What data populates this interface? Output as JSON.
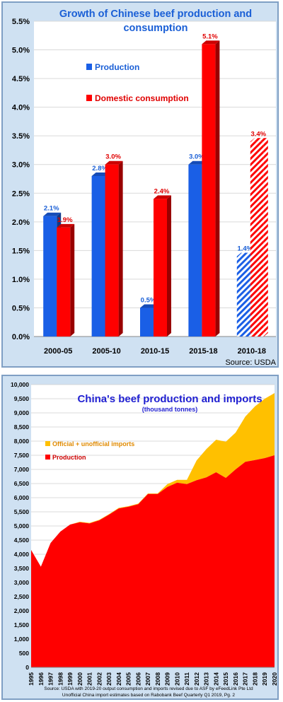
{
  "chart_data": [
    {
      "type": "bar",
      "title": "Growth of Chinese beef production and consumption",
      "title_lines": [
        "Growth of Chinese beef production and",
        "consumption"
      ],
      "categories": [
        "2000-05",
        "2005-10",
        "2010-15",
        "2015-18",
        "2010-18"
      ],
      "series": [
        {
          "name": "Production",
          "values": [
            2.1,
            2.8,
            0.5,
            3.0,
            1.4
          ],
          "labels": [
            "2.1%",
            "2.8%",
            "0.5%",
            "3.0%",
            "1.4%"
          ],
          "color": "#1a5fe6"
        },
        {
          "name": "Domestic consumption",
          "values": [
            1.9,
            3.0,
            2.4,
            5.1,
            3.4
          ],
          "labels": [
            "1.9%",
            "3.0%",
            "2.4%",
            "5.1%",
            "3.4%"
          ],
          "color": "#ff0000"
        }
      ],
      "hatched_categories": [
        "2010-18"
      ],
      "ylim": [
        0,
        5.5
      ],
      "yticks": [
        "0.0%",
        "0.5%",
        "1.0%",
        "1.5%",
        "2.0%",
        "2.5%",
        "3.0%",
        "3.5%",
        "4.0%",
        "4.5%",
        "5.0%",
        "5.5%"
      ],
      "legend_placement": "upper-left",
      "grid": true,
      "source": "Source: USDA"
    },
    {
      "type": "area",
      "stacked": true,
      "title": "China's beef production and imports",
      "subtitle": "(thousand tonnes)",
      "x": [
        "1995",
        "1996",
        "1997",
        "1998",
        "1999",
        "2000",
        "2001",
        "2002",
        "2003",
        "2004",
        "2005",
        "2006",
        "2007",
        "2008",
        "2009",
        "2010",
        "2011",
        "2012",
        "2013",
        "2014",
        "2015",
        "2016",
        "2017",
        "2018",
        "2019",
        "2020"
      ],
      "series": [
        {
          "name": "Production",
          "values": [
            4150,
            3560,
            4400,
            4800,
            5050,
            5130,
            5090,
            5200,
            5400,
            5620,
            5680,
            5770,
            6130,
            6130,
            6380,
            6530,
            6480,
            6620,
            6720,
            6900,
            6700,
            7000,
            7270,
            7330,
            7400,
            7500
          ],
          "color": "#ff0000"
        },
        {
          "name": "Official + unofficial imports",
          "values": [
            0,
            0,
            0,
            0,
            0,
            20,
            20,
            20,
            20,
            20,
            20,
            20,
            20,
            20,
            100,
            100,
            150,
            700,
            1000,
            1150,
            1280,
            1300,
            1600,
            1900,
            2100,
            2200
          ],
          "color": "#ffc000"
        }
      ],
      "ylim": [
        0,
        10000
      ],
      "yticks": [
        "0",
        "500",
        "1,000",
        "1,500",
        "2,000",
        "2,500",
        "3,000",
        "3,500",
        "4,000",
        "4,500",
        "5,000",
        "5,500",
        "6,000",
        "6,500",
        "7,000",
        "7,500",
        "8,000",
        "8,500",
        "9,000",
        "9,500",
        "10,000"
      ],
      "legend_placement": "upper-left",
      "grid": true,
      "source_lines": [
        "Source: USDA with 2019-20 output consumption and imports revised due to ASF by eFeedLink Pte Ltd",
        "Unofficial China import estimates based on Rabobank Beef Quarterly  Q1 2019, Pg. 2"
      ]
    }
  ]
}
